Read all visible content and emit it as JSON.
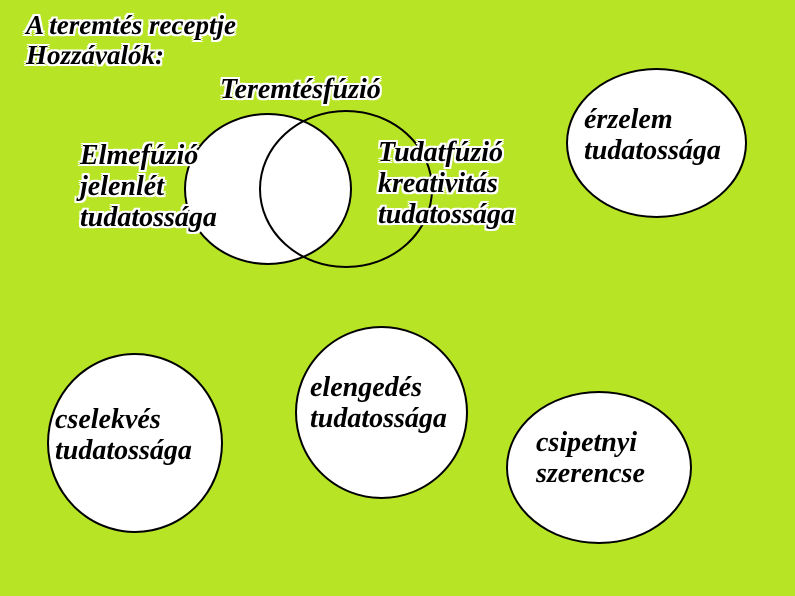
{
  "header": {
    "title": "A teremtés receptje",
    "subtitle": "Hozzávalók:"
  },
  "venn": {
    "top_label": "Teremtésfúzió",
    "left_lines": [
      "Elmefúzió",
      "jelenlét",
      "tudatossága"
    ],
    "right_lines": [
      "Tudatfúzió",
      "kreativitás",
      "tudatossága"
    ]
  },
  "bubbles": {
    "erzelem": [
      "érzelem",
      "tudatossága"
    ],
    "cselekves": [
      "cselekvés",
      "tudatossága"
    ],
    "elengedes": [
      "elengedés",
      "tudatossága"
    ],
    "szerencse": [
      "csipetnyi",
      "szerencse"
    ]
  },
  "colors": {
    "background": "#b7e526",
    "circle_fill": "#ffffff",
    "outline": "#000000"
  }
}
